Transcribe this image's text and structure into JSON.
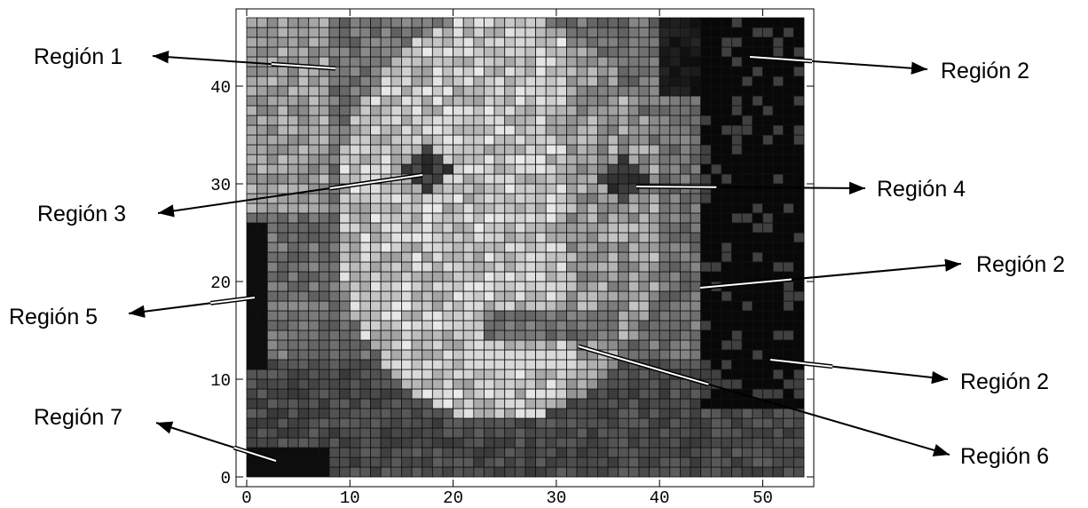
{
  "chart_data": {
    "type": "density",
    "xlim": [
      0,
      54
    ],
    "ylim": [
      0,
      47
    ],
    "xticks": [
      0,
      10,
      20,
      30,
      40,
      50
    ],
    "yticks": [
      0,
      10,
      20,
      30,
      40
    ],
    "annotations": [
      "Región 1",
      "Región 2",
      "Región 3",
      "Región 4",
      "Región 2",
      "Región 5",
      "Región 2",
      "Región 6",
      "Región 7"
    ]
  }
}
